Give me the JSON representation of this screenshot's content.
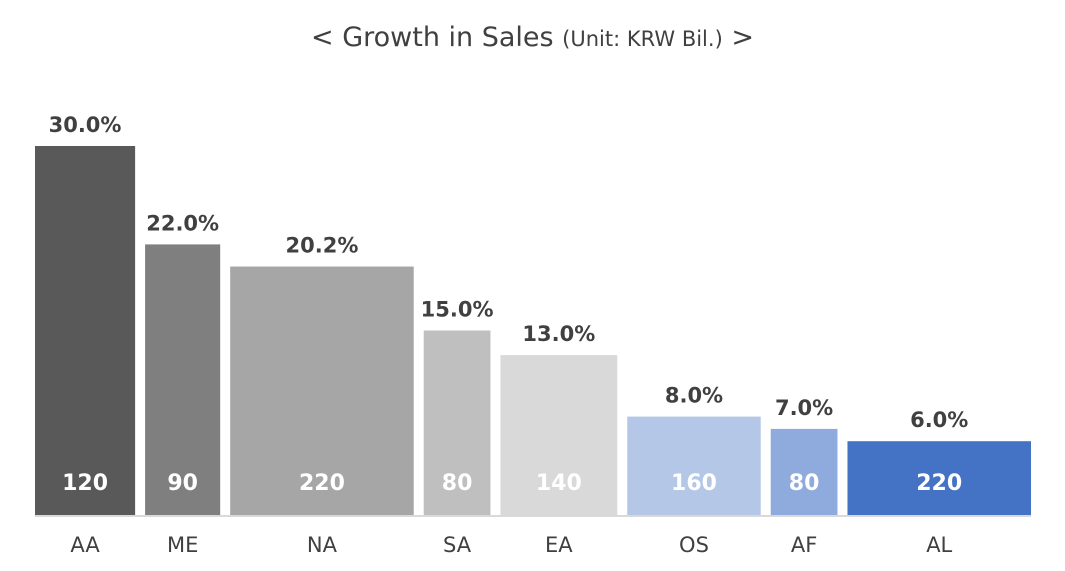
{
  "chart_data": {
    "type": "bar",
    "title": "< Growth in Sales",
    "unit_note": "(Unit: KRW Bil.)",
    "title_end": ">",
    "categories": [
      "AA",
      "ME",
      "NA",
      "SA",
      "EA",
      "OS",
      "AF",
      "AL"
    ],
    "growth_labels": [
      "30.0%",
      "22.0%",
      "20.2%",
      "15.0%",
      "13.0%",
      "8.0%",
      "7.0%",
      "6.0%"
    ],
    "series": [
      {
        "values": [
          30.0,
          22.0,
          20.2,
          15.0,
          13.0,
          8.0,
          7.0,
          6.0
        ]
      },
      {
        "values": [
          120,
          90,
          220,
          80,
          140,
          160,
          80,
          220
        ]
      }
    ],
    "colors": [
      "#595959",
      "#7f7f7f",
      "#a6a6a6",
      "#bfbfbf",
      "#d9d9d9",
      "#b4c7e7",
      "#8faadc",
      "#4472c4"
    ],
    "ylim": [
      0,
      30
    ],
    "grid": false,
    "legend": "none"
  }
}
